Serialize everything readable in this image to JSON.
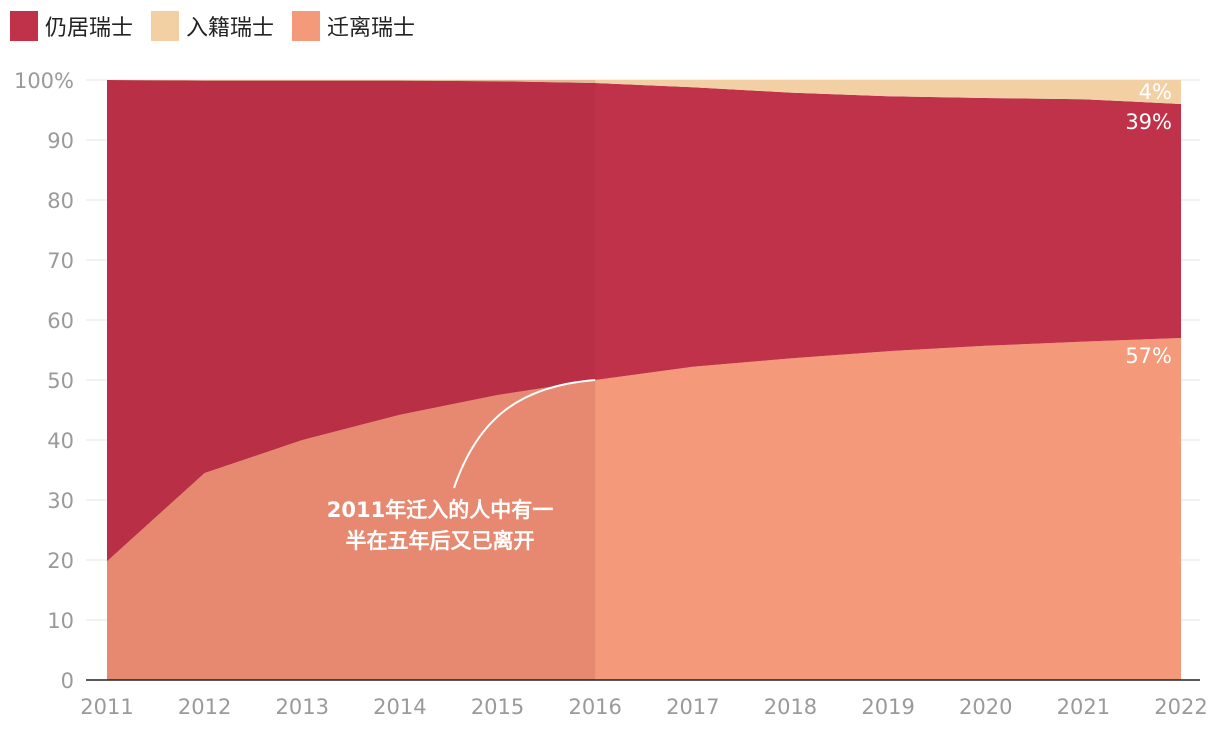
{
  "chart_data": {
    "type": "area",
    "stacked": true,
    "x": [
      2011,
      2012,
      2013,
      2014,
      2015,
      2016,
      2017,
      2018,
      2019,
      2020,
      2021,
      2022
    ],
    "series": [
      {
        "name": "迁离瑞士",
        "color": "#F4997A",
        "values": [
          19.8,
          34.5,
          40.0,
          44.2,
          47.5,
          50.0,
          52.2,
          53.6,
          54.8,
          55.7,
          56.4,
          57.0
        ]
      },
      {
        "name": "仍居瑞士",
        "color": "#C0324A",
        "values": [
          80.2,
          65.4,
          59.9,
          55.7,
          52.3,
          49.5,
          46.6,
          44.3,
          42.5,
          41.3,
          40.4,
          39.0
        ]
      },
      {
        "name": "入籍瑞士",
        "color": "#F2D0A4",
        "values": [
          0.0,
          0.1,
          0.1,
          0.1,
          0.2,
          0.5,
          1.2,
          2.1,
          2.7,
          3.0,
          3.2,
          4.0
        ]
      }
    ],
    "highlight": {
      "from": 2011,
      "to": 2016
    },
    "ylim": [
      0,
      100
    ],
    "yticks": [
      "0",
      "10",
      "20",
      "30",
      "40",
      "50",
      "60",
      "70",
      "80",
      "90",
      "100%"
    ],
    "xticks": [
      "2011",
      "2012",
      "2013",
      "2014",
      "2015",
      "2016",
      "2017",
      "2018",
      "2019",
      "2020",
      "2021",
      "2022"
    ],
    "end_labels": [
      {
        "series": "入籍瑞士",
        "text": "4%"
      },
      {
        "series": "仍居瑞士",
        "text": "39%"
      },
      {
        "series": "迁离瑞士",
        "text": "57%"
      }
    ],
    "annotation": {
      "lines": [
        "2011年迁入的人中有一",
        "半在五年后又已离开"
      ],
      "target": {
        "x": 2016,
        "y": 50
      }
    },
    "legend_position": "top-left",
    "grid": true
  }
}
